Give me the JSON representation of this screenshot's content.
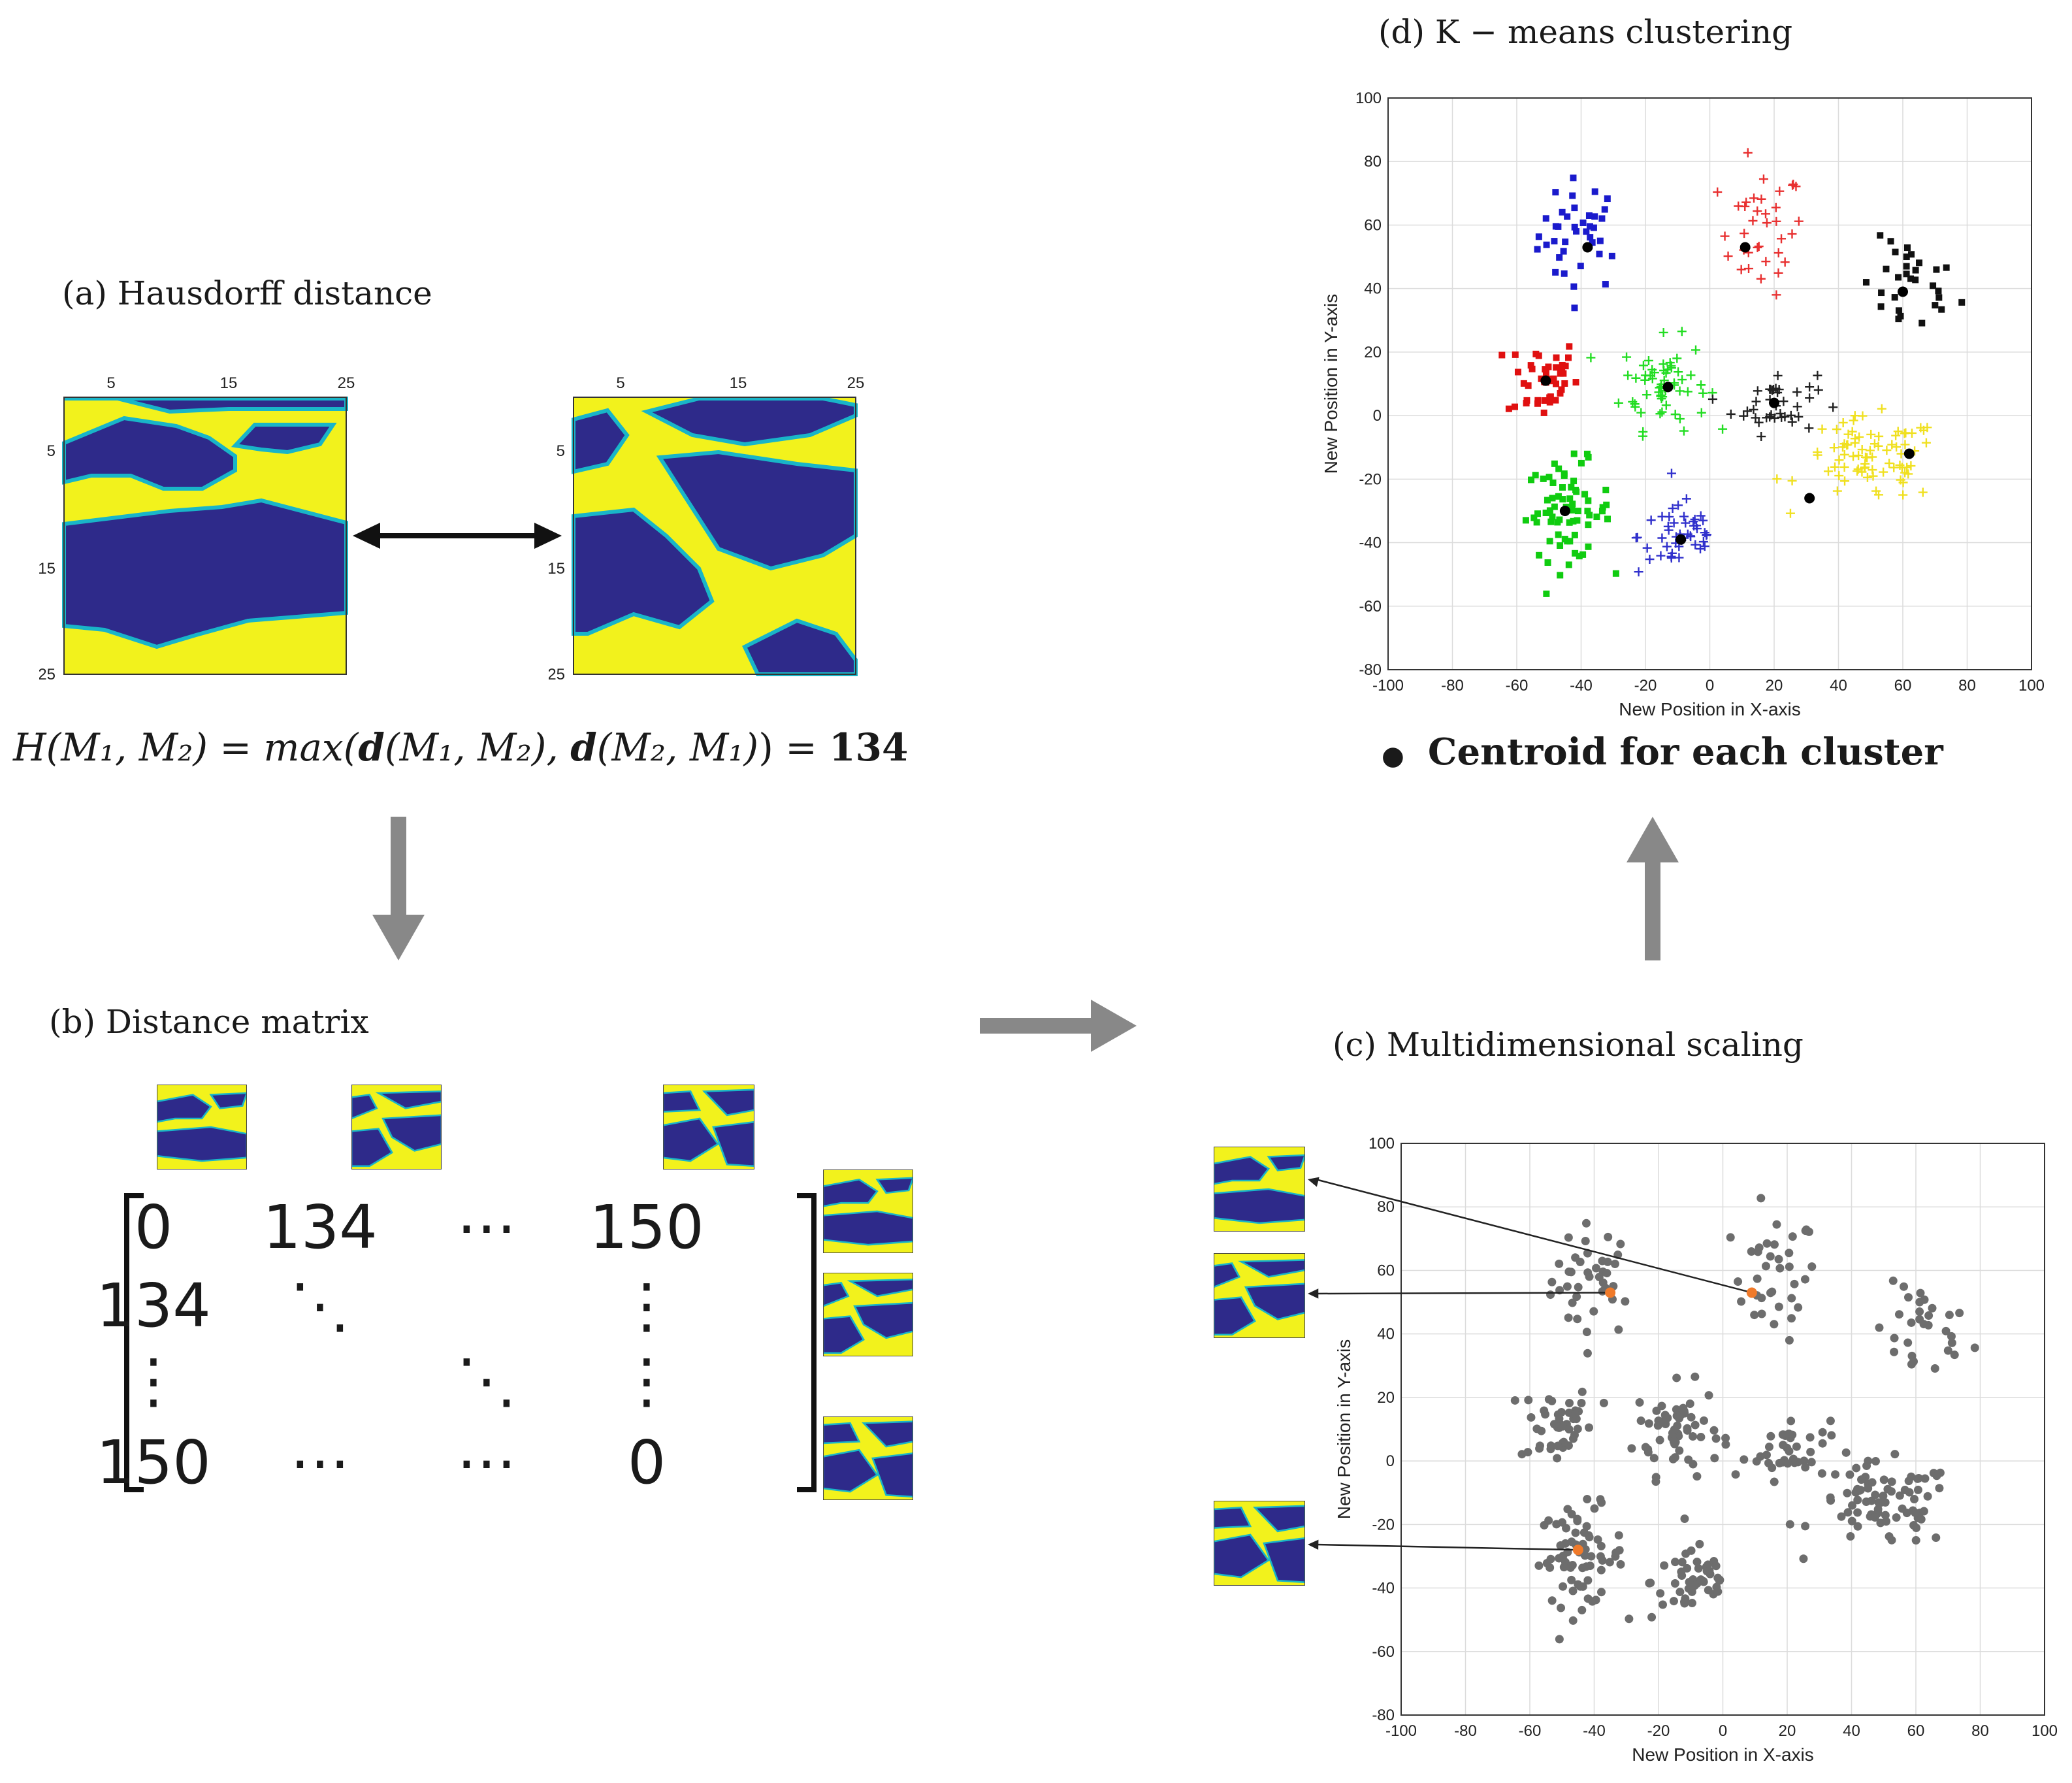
{
  "panels": {
    "a": {
      "label": "(a) Hausdorff distance",
      "map_ticks_top": [
        "5",
        "15",
        "25"
      ],
      "map_ticks_left": [
        "5",
        "15",
        "25"
      ],
      "formula": {
        "lhs": "H(M₁, M₂) = max(",
        "d1": "d",
        "args1": "(M₁, M₂), ",
        "d2": "d",
        "args2": "(M₂, M₁)",
        "rhs": ") = ",
        "value": "134"
      }
    },
    "b": {
      "label": "(b) Distance matrix",
      "matrix": [
        [
          "0",
          "134",
          "⋯",
          "150"
        ],
        [
          "134",
          "⋱",
          "",
          "⋮"
        ],
        [
          "⋮",
          "",
          "⋱",
          "⋮"
        ],
        [
          "150",
          "⋯",
          "⋯",
          "0"
        ]
      ]
    },
    "c": {
      "label": "(c) Multidimensional scaling",
      "xlabel": "New Position in X-axis",
      "ylabel": "New Position in Y-axis"
    },
    "d": {
      "label": "(d) K − means clustering",
      "xlabel": "New Position in X-axis",
      "ylabel": "New Position in Y-axis",
      "legend": "Centroid for each cluster"
    }
  },
  "colors": {
    "dark_blue": "#2e2a8a",
    "yellow": "#f2f21c",
    "edge": "#19b5c8",
    "arrow_gray": "#888888",
    "point_gray": "#6d6d6d",
    "highlight": "#f07a2a"
  },
  "chart_data": [
    {
      "id": "mds",
      "type": "scatter",
      "title": "(c) Multidimensional scaling",
      "xlabel": "New Position in X-axis",
      "ylabel": "New Position in Y-axis",
      "xlim": [
        -100,
        100
      ],
      "ylim": [
        -80,
        100
      ],
      "xticks": [
        -100,
        -80,
        -60,
        -40,
        -20,
        0,
        20,
        40,
        60,
        80,
        100
      ],
      "yticks": [
        -80,
        -60,
        -40,
        -20,
        0,
        20,
        40,
        60,
        80,
        100
      ],
      "grid": true,
      "highlighted": [
        [
          9,
          53
        ],
        [
          -35,
          53
        ],
        [
          -45,
          -28
        ]
      ],
      "points": "generated"
    },
    {
      "id": "kmeans",
      "type": "scatter",
      "title": "(d) K − means clustering",
      "xlabel": "New Position in X-axis",
      "ylabel": "New Position in Y-axis",
      "xlim": [
        -100,
        100
      ],
      "ylim": [
        -80,
        100
      ],
      "xticks": [
        -100,
        -80,
        -60,
        -40,
        -20,
        0,
        20,
        40,
        60,
        80,
        100
      ],
      "yticks": [
        -80,
        -60,
        -40,
        -20,
        0,
        20,
        40,
        60,
        80,
        100
      ],
      "grid": true,
      "clusters": [
        {
          "name": "blue-square",
          "color": "#1a1acc",
          "marker": "square",
          "center": [
            -40,
            57
          ],
          "spread": [
            12,
            16
          ],
          "n": 40
        },
        {
          "name": "red-plus",
          "color": "#e83030",
          "marker": "plus",
          "center": [
            16,
            58
          ],
          "spread": [
            12,
            18
          ],
          "n": 36
        },
        {
          "name": "black-square",
          "color": "#111111",
          "marker": "square",
          "center": [
            62,
            40
          ],
          "spread": [
            14,
            14
          ],
          "n": 30
        },
        {
          "name": "red-square",
          "color": "#e01010",
          "marker": "square",
          "center": [
            -52,
            12
          ],
          "spread": [
            10,
            12
          ],
          "n": 44
        },
        {
          "name": "green-plus",
          "color": "#22dd22",
          "marker": "plus",
          "center": [
            -14,
            10
          ],
          "spread": [
            12,
            13
          ],
          "n": 60
        },
        {
          "name": "black-plus",
          "color": "#222222",
          "marker": "plus",
          "center": [
            20,
            4
          ],
          "spread": [
            12,
            9
          ],
          "n": 40
        },
        {
          "name": "green-square",
          "color": "#10cc10",
          "marker": "square",
          "center": [
            -44,
            -30
          ],
          "spread": [
            12,
            14
          ],
          "n": 70
        },
        {
          "name": "blue-plus",
          "color": "#3030cc",
          "marker": "plus",
          "center": [
            -9,
            -38
          ],
          "spread": [
            12,
            11
          ],
          "n": 48
        },
        {
          "name": "yellow-plus",
          "color": "#f0e020",
          "marker": "plus",
          "center": [
            50,
            -14
          ],
          "spread": [
            20,
            12
          ],
          "n": 80
        }
      ],
      "centroids": [
        [
          -38,
          53
        ],
        [
          11,
          53
        ],
        [
          60,
          39
        ],
        [
          -51,
          11
        ],
        [
          -13,
          9
        ],
        [
          20,
          4
        ],
        [
          62,
          -12
        ],
        [
          31,
          -26
        ],
        [
          -45,
          -30
        ],
        [
          -9,
          -39
        ]
      ]
    }
  ]
}
